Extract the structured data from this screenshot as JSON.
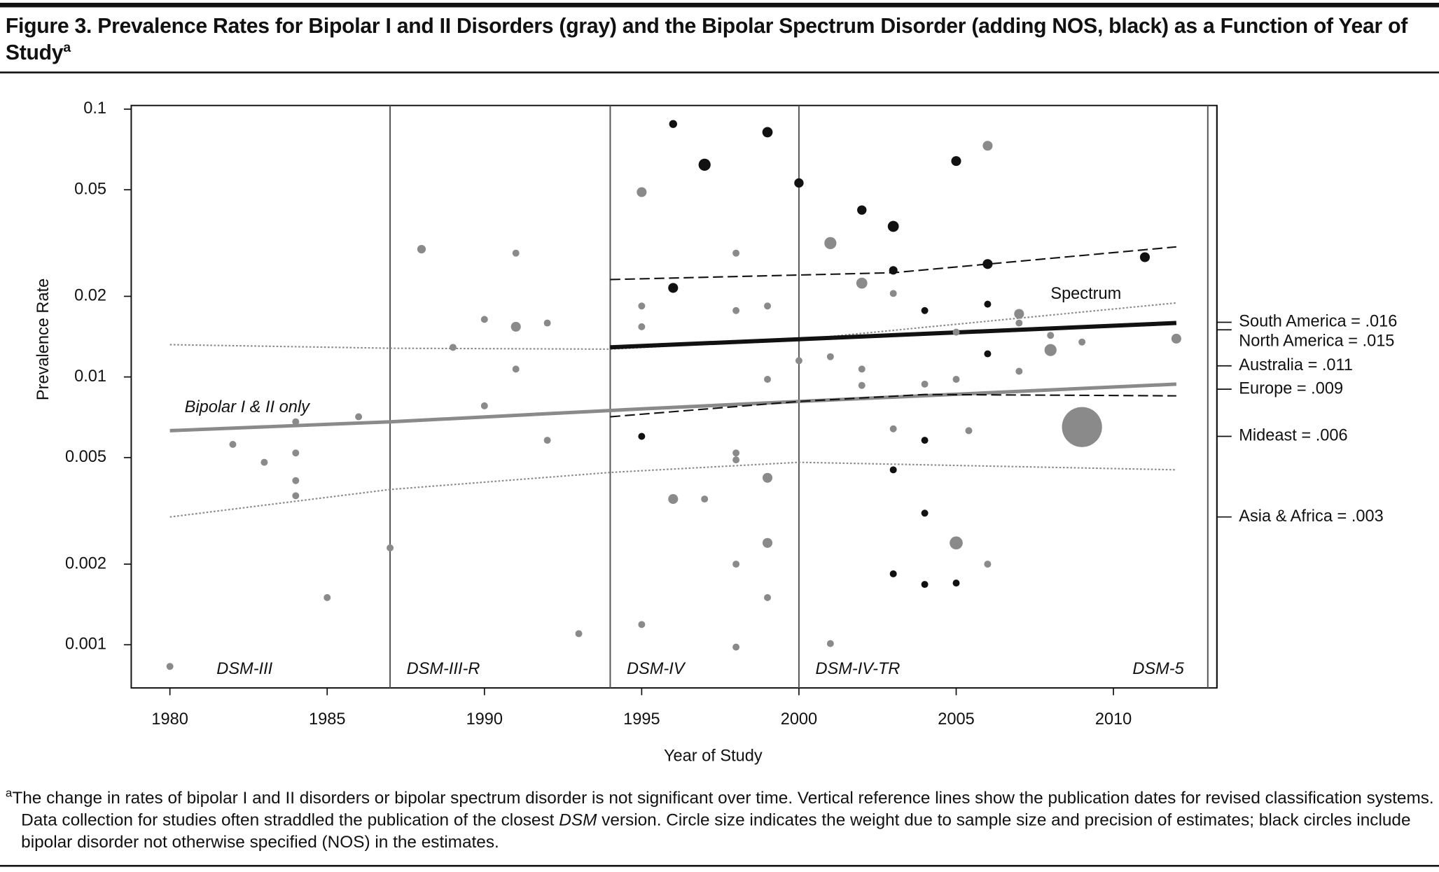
{
  "chart_data": {
    "type": "scatter",
    "title": "Figure 3. Prevalence Rates for Bipolar I and II Disorders (gray) and the Bipolar Spectrum Disorder (adding NOS, black) as a Function of Year of Study",
    "title_note": "a",
    "xlabel": "Year of Study",
    "ylabel": "Prevalence Rate",
    "log_y": true,
    "grid": false,
    "xlim": [
      1978.77,
      2013.29
    ],
    "ylim": [
      0.00069,
      0.1032
    ],
    "xticks": [
      1980,
      1985,
      1990,
      1995,
      2000,
      2005,
      2010
    ],
    "yticks": [
      0.1,
      0.05,
      0.02,
      0.01,
      0.005,
      0.002,
      0.001
    ],
    "series": [
      {
        "color": "#8a8a8a",
        "x": [
          1980,
          1982,
          1983,
          1984,
          1984,
          1984,
          1984,
          1985,
          1986,
          1987,
          1988,
          1989,
          1990,
          1990,
          1991,
          1991,
          1991,
          1992,
          1992,
          1993,
          1995,
          1995,
          1995,
          1995,
          1996,
          1997,
          1998,
          1998,
          1998,
          1998,
          1998,
          1998,
          1999,
          1999,
          1999,
          1999,
          1999,
          2000,
          2001,
          2001,
          2001,
          2002,
          2002,
          2002,
          2003,
          2003,
          2004,
          2005,
          2005,
          2005,
          2005.4,
          2006,
          2006,
          2007,
          2007,
          2007,
          2008,
          2008,
          2009,
          2009,
          2012
        ],
        "values": [
          0.00083,
          0.0056,
          0.0048,
          0.0068,
          0.0052,
          0.0041,
          0.0036,
          0.0015,
          0.0071,
          0.0023,
          0.03,
          0.0129,
          0.0164,
          0.0078,
          0.029,
          0.0154,
          0.0107,
          0.0159,
          0.0058,
          0.0011,
          0.049,
          0.0184,
          0.0154,
          0.00119,
          0.0035,
          0.0035,
          0.029,
          0.0177,
          0.0052,
          0.0049,
          0.002,
          0.00098,
          0.0184,
          0.0098,
          0.0042,
          0.0024,
          0.0015,
          0.0115,
          0.0316,
          0.0119,
          0.00101,
          0.0224,
          0.0107,
          0.0093,
          0.0205,
          0.0064,
          0.0094,
          0.0098,
          0.0147,
          0.0024,
          0.0063,
          0.073,
          0.002,
          0.0172,
          0.0159,
          0.0105,
          0.0143,
          0.0126,
          0.0135,
          0.0065,
          0.0139
        ],
        "sizes": [
          1,
          1,
          1,
          1,
          1,
          1,
          1,
          1,
          1,
          1,
          1.5,
          1,
          1,
          1,
          1,
          2,
          1,
          1,
          1,
          1,
          2,
          1,
          1,
          1,
          2,
          1,
          1,
          1,
          1,
          1,
          1,
          1,
          1,
          1,
          2,
          2,
          1,
          1,
          3,
          1,
          1,
          2.5,
          1,
          1,
          1,
          1,
          1,
          1,
          1,
          3.5,
          1,
          2,
          1,
          2,
          1,
          1,
          1,
          3,
          1,
          33,
          2
        ]
      },
      {
        "color": "#111111",
        "x": [
          1995,
          1996,
          1996,
          1997,
          1999,
          2000,
          2002,
          2003,
          2003,
          2003,
          2003,
          2004,
          2004,
          2004,
          2004,
          2005,
          2005,
          2006,
          2006,
          2006,
          2011
        ],
        "values": [
          0.006,
          0.088,
          0.0215,
          0.062,
          0.082,
          0.053,
          0.042,
          0.0365,
          0.025,
          0.0045,
          0.00184,
          0.0177,
          0.0058,
          0.0031,
          0.00168,
          0.064,
          0.0017,
          0.0264,
          0.0187,
          0.0122,
          0.028
        ],
        "sizes": [
          1,
          1.3,
          2,
          3,
          2.2,
          1.8,
          1.8,
          2.5,
          1.5,
          1,
          1,
          1,
          1,
          1,
          1,
          2,
          1,
          2,
          1,
          1,
          2
        ]
      }
    ],
    "fits": [
      {
        "label": "Bipolar I & II only",
        "color": "#8a8a8a",
        "style": "solid",
        "x": [
          1980,
          1987,
          1995,
          2000,
          2012
        ],
        "values": [
          0.0063,
          0.0068,
          0.0076,
          0.0081,
          0.0094
        ]
      },
      {
        "color": "#8a8a8a",
        "style": "dotted",
        "x": [
          1980,
          1987,
          1994,
          2000,
          2012
        ],
        "values": [
          0.0132,
          0.0128,
          0.0127,
          0.0138,
          0.0189
        ]
      },
      {
        "color": "#8a8a8a",
        "style": "dotted",
        "x": [
          1980,
          1987,
          1994,
          2000,
          2012
        ],
        "values": [
          0.003,
          0.0038,
          0.0044,
          0.0048,
          0.0045
        ]
      },
      {
        "label": "Spectrum",
        "color": "#111111",
        "style": "solid",
        "x": [
          1994,
          2012
        ],
        "values": [
          0.0129,
          0.0159
        ]
      },
      {
        "color": "#111111",
        "style": "dashed",
        "x": [
          1994,
          2003,
          2012
        ],
        "values": [
          0.0231,
          0.0245,
          0.0306
        ]
      },
      {
        "color": "#111111",
        "style": "dashed",
        "x": [
          1994,
          2000,
          2004,
          2012
        ],
        "values": [
          0.0071,
          0.0081,
          0.0086,
          0.0085
        ]
      }
    ],
    "eras": [
      {
        "label": "DSM-III"
      },
      {
        "x": 1987,
        "label": "DSM-III-R"
      },
      {
        "x": 1994,
        "label": "DSM-IV"
      },
      {
        "x": 2000,
        "label": "DSM-IV-TR"
      },
      {
        "x": 2013,
        "label": "DSM-5"
      }
    ],
    "regions": [
      {
        "label": "South America = .016",
        "value": 0.016
      },
      {
        "label": "North America = .015",
        "value": 0.015
      },
      {
        "label": "Australia = .011",
        "value": 0.011
      },
      {
        "label": "Europe = .009",
        "value": 0.009
      },
      {
        "label": "Mideast = .006",
        "value": 0.006
      },
      {
        "label": "Asia & Africa = .003",
        "value": 0.003
      }
    ],
    "footnote": {
      "marker": "a",
      "parts": [
        "The change in rates of bipolar I and II disorders or bipolar spectrum disorder is not significant over time. Vertical reference lines show the publication dates for revised classification systems. Data collection for studies often straddled the publication of the closest ",
        "DSM",
        " version. Circle size indicates the weight due to sample size and precision of estimates; black circles include bipolar disorder not otherwise specified (NOS) in the estimates."
      ]
    }
  }
}
